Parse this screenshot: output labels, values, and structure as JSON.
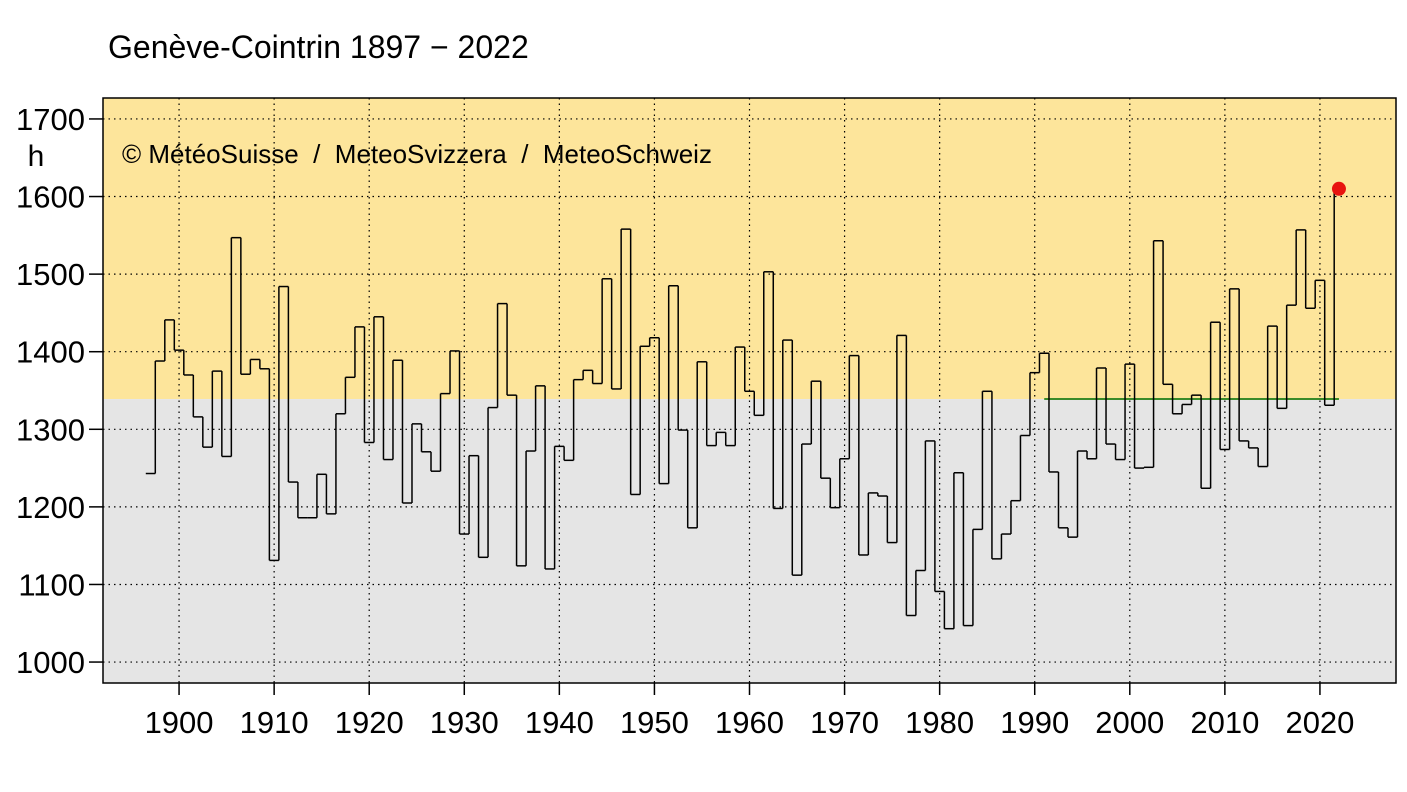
{
  "chart_data": {
    "type": "step",
    "title": "Genève-Cointrin 1897 − 2022",
    "y_unit": "h",
    "copyright": "© MétéoSuisse  /  MeteoSvizzera  /  MeteoSchweiz",
    "x": [
      1897,
      1898,
      1899,
      1900,
      1901,
      1902,
      1903,
      1904,
      1905,
      1906,
      1907,
      1908,
      1909,
      1910,
      1911,
      1912,
      1913,
      1914,
      1915,
      1916,
      1917,
      1918,
      1919,
      1920,
      1921,
      1922,
      1923,
      1924,
      1925,
      1926,
      1927,
      1928,
      1929,
      1930,
      1931,
      1932,
      1933,
      1934,
      1935,
      1936,
      1937,
      1938,
      1939,
      1940,
      1941,
      1942,
      1943,
      1944,
      1945,
      1946,
      1947,
      1948,
      1949,
      1950,
      1951,
      1952,
      1953,
      1954,
      1955,
      1956,
      1957,
      1958,
      1959,
      1960,
      1961,
      1962,
      1963,
      1964,
      1965,
      1966,
      1967,
      1968,
      1969,
      1970,
      1971,
      1972,
      1973,
      1974,
      1975,
      1976,
      1977,
      1978,
      1979,
      1980,
      1981,
      1982,
      1983,
      1984,
      1985,
      1986,
      1987,
      1988,
      1989,
      1990,
      1991,
      1992,
      1993,
      1994,
      1995,
      1996,
      1997,
      1998,
      1999,
      2000,
      2001,
      2002,
      2003,
      2004,
      2005,
      2006,
      2007,
      2008,
      2009,
      2010,
      2011,
      2012,
      2013,
      2014,
      2015,
      2016,
      2017,
      2018,
      2019,
      2020,
      2021,
      2022
    ],
    "series": [
      {
        "color": "#000000",
        "values": [
          1243,
          1388,
          1441,
          1402,
          1370,
          1316,
          1277,
          1375,
          1265,
          1547,
          1371,
          1390,
          1378,
          1131,
          1484,
          1232,
          1186,
          1186,
          1242,
          1191,
          1320,
          1367,
          1432,
          1283,
          1445,
          1261,
          1389,
          1205,
          1307,
          1271,
          1246,
          1346,
          1401,
          1165,
          1266,
          1135,
          1328,
          1462,
          1344,
          1124,
          1272,
          1356,
          1120,
          1278,
          1260,
          1364,
          1376,
          1359,
          1494,
          1352,
          1558,
          1216,
          1407,
          1418,
          1230,
          1485,
          1299,
          1173,
          1387,
          1279,
          1296,
          1279,
          1406,
          1349,
          1318,
          1503,
          1198,
          1415,
          1112,
          1281,
          1362,
          1237,
          1199,
          1262,
          1395,
          1138,
          1218,
          1214,
          1154,
          1421,
          1060,
          1118,
          1285,
          1091,
          1043,
          1244,
          1047,
          1171,
          1349,
          1133,
          1165,
          1208,
          1292,
          1373,
          1398,
          1245,
          1173,
          1161,
          1272,
          1262,
          1379,
          1281,
          1261,
          1384,
          1250,
          1251,
          1543,
          1358,
          1320,
          1332,
          1344,
          1224,
          1438,
          1274,
          1481,
          1285,
          1276,
          1252,
          1433,
          1327,
          1460,
          1557,
          1456,
          1492,
          1331,
          1610
        ]
      }
    ],
    "normal": {
      "value": 1339,
      "x": [
        1991,
        2022
      ],
      "color": "#3a8a2a"
    },
    "highlight_color": "#e8130f",
    "above_color": "#fde59b",
    "below_color": "#e5e5e5",
    "xlim": [
      1892,
      2028
    ],
    "ylim": [
      973,
      1727
    ],
    "xticks": [
      1900,
      1910,
      1920,
      1930,
      1940,
      1950,
      1960,
      1970,
      1980,
      1990,
      2000,
      2010,
      2020
    ],
    "yticks": [
      1000,
      1100,
      1200,
      1300,
      1400,
      1500,
      1600,
      1700
    ],
    "grid": true
  }
}
